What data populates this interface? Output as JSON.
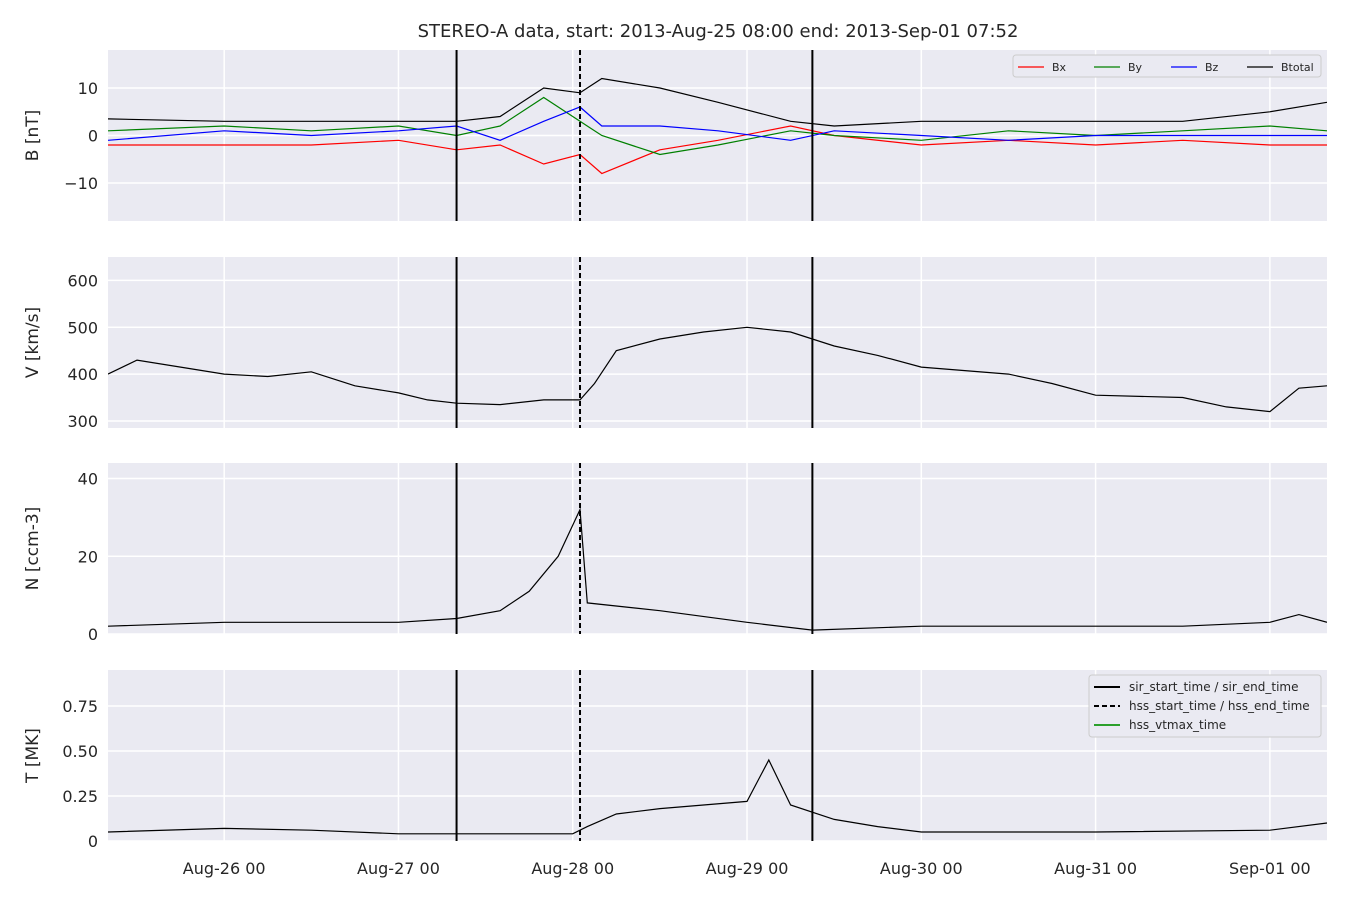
{
  "title": "STEREO-A data, start: 2013-Aug-25 08:00  end: 2013-Sep-01 07:52",
  "x_axis": {
    "start": "2013-08-25 08:00",
    "end": "2013-09-01 07:52",
    "tick_labels": [
      "Aug-26 00",
      "Aug-27 00",
      "Aug-28 00",
      "Aug-29 00",
      "Aug-30 00",
      "Aug-31 00",
      "Sep-01 00"
    ]
  },
  "event_markers": {
    "sir_start_time": "2013-08-27 08:00",
    "hss_start_time": "2013-08-28 01:00",
    "sir_end_time": "2013-08-29 09:00"
  },
  "legend_events": [
    {
      "label": "sir_start_time / sir_end_time",
      "color": "#000000",
      "style": "solid"
    },
    {
      "label": "hss_start_time / hss_end_time",
      "color": "#000000",
      "style": "dashed"
    },
    {
      "label": "hss_vtmax_time",
      "color": "#2ca02c",
      "style": "solid"
    }
  ],
  "chart_data": [
    {
      "type": "line",
      "ylabel": "B [nT]",
      "ylim": [
        -18,
        18
      ],
      "yticks": [
        -10,
        0,
        10
      ],
      "legend": "top-right",
      "series": [
        {
          "name": "Bx",
          "color": "#ff0000",
          "points": [
            [
              "2013-08-25 08:00",
              -2
            ],
            [
              "2013-08-26 00:00",
              -2
            ],
            [
              "2013-08-26 12:00",
              -2
            ],
            [
              "2013-08-27 00:00",
              -1
            ],
            [
              "2013-08-27 08:00",
              -3
            ],
            [
              "2013-08-27 14:00",
              -2
            ],
            [
              "2013-08-27 20:00",
              -6
            ],
            [
              "2013-08-28 01:00",
              -4
            ],
            [
              "2013-08-28 04:00",
              -8
            ],
            [
              "2013-08-28 12:00",
              -3
            ],
            [
              "2013-08-28 20:00",
              -1
            ],
            [
              "2013-08-29 06:00",
              2
            ],
            [
              "2013-08-29 12:00",
              0
            ],
            [
              "2013-08-30 00:00",
              -2
            ],
            [
              "2013-08-30 12:00",
              -1
            ],
            [
              "2013-08-31 00:00",
              -2
            ],
            [
              "2013-08-31 12:00",
              -1
            ],
            [
              "2013-09-01 00:00",
              -2
            ],
            [
              "2013-09-01 07:52",
              -2
            ]
          ]
        },
        {
          "name": "By",
          "color": "#008000",
          "points": [
            [
              "2013-08-25 08:00",
              1
            ],
            [
              "2013-08-26 00:00",
              2
            ],
            [
              "2013-08-26 12:00",
              1
            ],
            [
              "2013-08-27 00:00",
              2
            ],
            [
              "2013-08-27 08:00",
              0
            ],
            [
              "2013-08-27 14:00",
              2
            ],
            [
              "2013-08-27 20:00",
              8
            ],
            [
              "2013-08-28 01:00",
              3
            ],
            [
              "2013-08-28 04:00",
              0
            ],
            [
              "2013-08-28 12:00",
              -4
            ],
            [
              "2013-08-28 20:00",
              -2
            ],
            [
              "2013-08-29 06:00",
              1
            ],
            [
              "2013-08-29 12:00",
              0
            ],
            [
              "2013-08-30 00:00",
              -1
            ],
            [
              "2013-08-30 12:00",
              1
            ],
            [
              "2013-08-31 00:00",
              0
            ],
            [
              "2013-08-31 12:00",
              1
            ],
            [
              "2013-09-01 00:00",
              2
            ],
            [
              "2013-09-01 07:52",
              1
            ]
          ]
        },
        {
          "name": "Bz",
          "color": "#0000ff",
          "points": [
            [
              "2013-08-25 08:00",
              -1
            ],
            [
              "2013-08-26 00:00",
              1
            ],
            [
              "2013-08-26 12:00",
              0
            ],
            [
              "2013-08-27 00:00",
              1
            ],
            [
              "2013-08-27 08:00",
              2
            ],
            [
              "2013-08-27 14:00",
              -1
            ],
            [
              "2013-08-27 20:00",
              3
            ],
            [
              "2013-08-28 01:00",
              6
            ],
            [
              "2013-08-28 04:00",
              2
            ],
            [
              "2013-08-28 12:00",
              2
            ],
            [
              "2013-08-28 20:00",
              1
            ],
            [
              "2013-08-29 06:00",
              -1
            ],
            [
              "2013-08-29 12:00",
              1
            ],
            [
              "2013-08-30 00:00",
              0
            ],
            [
              "2013-08-30 12:00",
              -1
            ],
            [
              "2013-08-31 00:00",
              0
            ],
            [
              "2013-08-31 12:00",
              0
            ],
            [
              "2013-09-01 00:00",
              0
            ],
            [
              "2013-09-01 07:52",
              0
            ]
          ]
        },
        {
          "name": "Btotal",
          "color": "#000000",
          "points": [
            [
              "2013-08-25 08:00",
              3.5
            ],
            [
              "2013-08-26 00:00",
              3
            ],
            [
              "2013-08-26 12:00",
              3
            ],
            [
              "2013-08-27 00:00",
              3
            ],
            [
              "2013-08-27 08:00",
              3
            ],
            [
              "2013-08-27 14:00",
              4
            ],
            [
              "2013-08-27 20:00",
              10
            ],
            [
              "2013-08-28 01:00",
              9
            ],
            [
              "2013-08-28 04:00",
              12
            ],
            [
              "2013-08-28 12:00",
              10
            ],
            [
              "2013-08-28 20:00",
              7
            ],
            [
              "2013-08-29 06:00",
              3
            ],
            [
              "2013-08-29 12:00",
              2
            ],
            [
              "2013-08-30 00:00",
              3
            ],
            [
              "2013-08-30 12:00",
              3
            ],
            [
              "2013-08-31 00:00",
              3
            ],
            [
              "2013-08-31 12:00",
              3
            ],
            [
              "2013-09-01 00:00",
              5
            ],
            [
              "2013-09-01 07:52",
              7
            ]
          ]
        }
      ]
    },
    {
      "type": "line",
      "ylabel": "V [km/s]",
      "ylim": [
        285,
        650
      ],
      "yticks": [
        300,
        400,
        500,
        600
      ],
      "series": [
        {
          "color": "#000000",
          "points": [
            [
              "2013-08-25 08:00",
              400
            ],
            [
              "2013-08-25 12:00",
              430
            ],
            [
              "2013-08-25 18:00",
              415
            ],
            [
              "2013-08-26 00:00",
              400
            ],
            [
              "2013-08-26 06:00",
              395
            ],
            [
              "2013-08-26 12:00",
              405
            ],
            [
              "2013-08-26 18:00",
              375
            ],
            [
              "2013-08-27 00:00",
              360
            ],
            [
              "2013-08-27 04:00",
              345
            ],
            [
              "2013-08-27 08:00",
              338
            ],
            [
              "2013-08-27 14:00",
              335
            ],
            [
              "2013-08-27 20:00",
              345
            ],
            [
              "2013-08-28 01:00",
              345
            ],
            [
              "2013-08-28 03:00",
              380
            ],
            [
              "2013-08-28 06:00",
              450
            ],
            [
              "2013-08-28 12:00",
              475
            ],
            [
              "2013-08-28 18:00",
              490
            ],
            [
              "2013-08-29 00:00",
              500
            ],
            [
              "2013-08-29 06:00",
              490
            ],
            [
              "2013-08-29 12:00",
              460
            ],
            [
              "2013-08-29 18:00",
              440
            ],
            [
              "2013-08-30 00:00",
              415
            ],
            [
              "2013-08-30 12:00",
              400
            ],
            [
              "2013-08-30 18:00",
              380
            ],
            [
              "2013-08-31 00:00",
              355
            ],
            [
              "2013-08-31 12:00",
              350
            ],
            [
              "2013-08-31 18:00",
              330
            ],
            [
              "2013-09-01 00:00",
              320
            ],
            [
              "2013-09-01 04:00",
              370
            ],
            [
              "2013-09-01 07:52",
              375
            ]
          ]
        }
      ]
    },
    {
      "type": "line",
      "ylabel": "N [ccm-3]",
      "ylim": [
        0,
        44
      ],
      "yticks": [
        0,
        20,
        40
      ],
      "series": [
        {
          "color": "#000000",
          "points": [
            [
              "2013-08-25 08:00",
              2
            ],
            [
              "2013-08-26 00:00",
              3
            ],
            [
              "2013-08-26 12:00",
              3
            ],
            [
              "2013-08-27 00:00",
              3
            ],
            [
              "2013-08-27 08:00",
              4
            ],
            [
              "2013-08-27 14:00",
              6
            ],
            [
              "2013-08-27 18:00",
              11
            ],
            [
              "2013-08-27 22:00",
              20
            ],
            [
              "2013-08-28 00:00",
              28
            ],
            [
              "2013-08-28 01:00",
              32
            ],
            [
              "2013-08-28 02:00",
              8
            ],
            [
              "2013-08-28 12:00",
              6
            ],
            [
              "2013-08-29 00:00",
              3
            ],
            [
              "2013-08-29 09:00",
              1
            ],
            [
              "2013-08-30 00:00",
              2
            ],
            [
              "2013-08-30 12:00",
              2
            ],
            [
              "2013-08-31 00:00",
              2
            ],
            [
              "2013-08-31 12:00",
              2
            ],
            [
              "2013-09-01 00:00",
              3
            ],
            [
              "2013-09-01 04:00",
              5
            ],
            [
              "2013-09-01 07:52",
              3
            ]
          ]
        }
      ]
    },
    {
      "type": "line",
      "ylabel": "T [MK]",
      "ylim": [
        0,
        0.95
      ],
      "yticks": [
        0.0,
        0.25,
        0.5,
        0.75
      ],
      "series": [
        {
          "color": "#000000",
          "points": [
            [
              "2013-08-25 08:00",
              0.05
            ],
            [
              "2013-08-26 00:00",
              0.07
            ],
            [
              "2013-08-26 12:00",
              0.06
            ],
            [
              "2013-08-27 00:00",
              0.04
            ],
            [
              "2013-08-27 12:00",
              0.04
            ],
            [
              "2013-08-28 00:00",
              0.04
            ],
            [
              "2013-08-28 02:00",
              0.08
            ],
            [
              "2013-08-28 06:00",
              0.15
            ],
            [
              "2013-08-28 12:00",
              0.18
            ],
            [
              "2013-08-28 18:00",
              0.2
            ],
            [
              "2013-08-29 00:00",
              0.22
            ],
            [
              "2013-08-29 03:00",
              0.45
            ],
            [
              "2013-08-29 06:00",
              0.2
            ],
            [
              "2013-08-29 12:00",
              0.12
            ],
            [
              "2013-08-29 18:00",
              0.08
            ],
            [
              "2013-08-30 00:00",
              0.05
            ],
            [
              "2013-08-31 00:00",
              0.05
            ],
            [
              "2013-09-01 00:00",
              0.06
            ],
            [
              "2013-09-01 07:52",
              0.1
            ]
          ]
        }
      ],
      "legend": "top-right"
    }
  ]
}
